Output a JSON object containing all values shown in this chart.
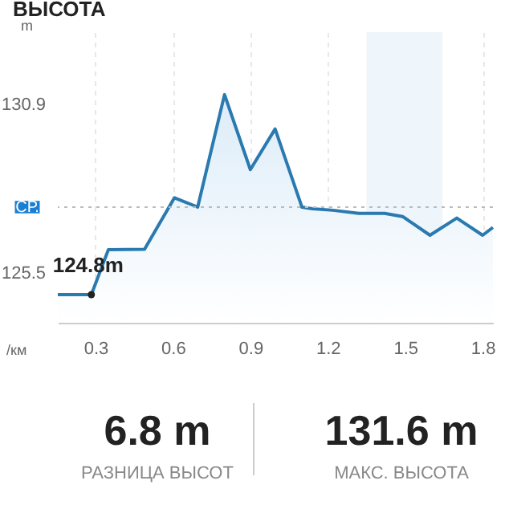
{
  "chart_data": {
    "type": "area",
    "title": "ВЫСОТА",
    "ylabel": "m",
    "xlabel": "/км",
    "x": [
      0.154,
      0.284,
      0.35,
      0.49,
      0.606,
      0.696,
      0.8,
      0.9,
      0.996,
      1.1,
      1.14,
      1.22,
      1.32,
      1.42,
      1.49,
      1.596,
      1.7,
      1.8,
      1.84
    ],
    "series": [
      {
        "color": "#2a7ab0",
        "values": [
          124.8,
          124.8,
          126.24,
          126.25,
          127.9,
          127.6,
          131.2,
          128.8,
          130.1,
          127.6,
          127.55,
          127.5,
          127.4,
          127.4,
          127.3,
          126.7,
          127.25,
          126.7,
          126.95
        ]
      }
    ],
    "xlim": [
      0.154,
      1.84
    ],
    "ylim": [
      123.9,
      133.2
    ],
    "xticks": [
      0.3,
      0.6,
      0.9,
      1.2,
      1.5,
      1.8
    ],
    "yticks": [
      125.5,
      130.9
    ],
    "grid": "x",
    "marker": "none",
    "line_style": "solid",
    "ref_lines": [
      {
        "axis": "y",
        "value": 127.6,
        "label": "СР.",
        "color": "#bbbbbb",
        "line_style": "dotted"
      }
    ],
    "bands": [
      {
        "axis": "x",
        "from": 1.35,
        "to": 1.645,
        "color": "#eef5fb"
      }
    ],
    "annotations": [
      {
        "text": "124.8m",
        "x": 0.284,
        "y": 124.8
      },
      "6.8 m",
      "РАЗНИЦА ВЫСОТ",
      "131.6 m",
      "МАКС. ВЫСОТА"
    ]
  }
}
